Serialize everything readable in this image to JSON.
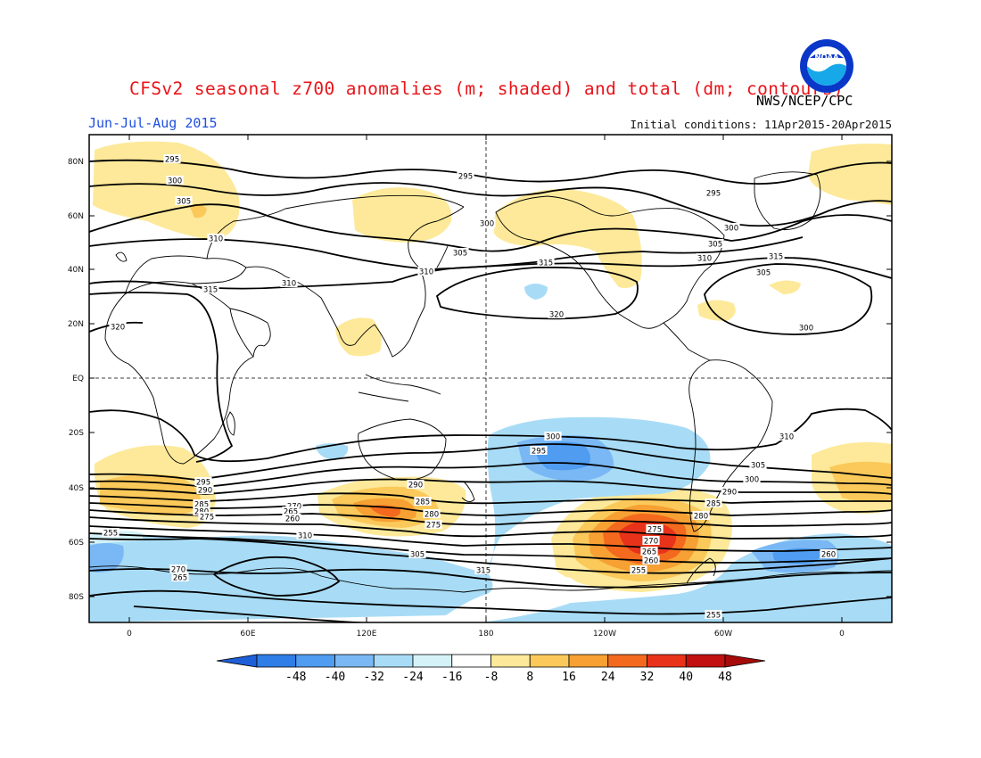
{
  "header": {
    "title": "CFSv2 seasonal z700 anomalies (m; shaded) and total (dm; contours)",
    "agency": "NWS/NCEP/CPC",
    "season": "Jun-Jul-Aug 2015",
    "initial_conditions": "Initial conditions: 11Apr2015-20Apr2015"
  },
  "logo": {
    "text": "NOAA",
    "icon": "noaa-logo"
  },
  "map": {
    "lat_ticks": [
      "80N",
      "60N",
      "40N",
      "20N",
      "EQ",
      "20S",
      "40S",
      "60S",
      "80S"
    ],
    "lon_ticks": [
      "0",
      "60E",
      "120E",
      "180",
      "120W",
      "60W",
      "0"
    ],
    "contour_labels": [
      "295",
      "300",
      "305",
      "310",
      "315",
      "320",
      "310",
      "295",
      "300",
      "305",
      "310",
      "315",
      "320",
      "300",
      "305",
      "310",
      "315",
      "305",
      "300",
      "295",
      "290",
      "285",
      "280",
      "275",
      "270",
      "265",
      "260",
      "255",
      "310",
      "305",
      "300",
      "295",
      "290",
      "285",
      "280",
      "275",
      "270",
      "265",
      "260",
      "255",
      "315",
      "310",
      "305",
      "300",
      "295",
      "290",
      "285",
      "280",
      "275",
      "270",
      "265",
      "260",
      "255"
    ]
  },
  "colorbar": {
    "labels": [
      "-48",
      "-40",
      "-32",
      "-24",
      "-16",
      "-8",
      "8",
      "16",
      "24",
      "32",
      "40",
      "48"
    ],
    "colors": [
      "#1e5fd8",
      "#2f7de6",
      "#4f9cf0",
      "#7ab8f5",
      "#a8dcf6",
      "#d4f2f8",
      "#ffffff",
      "#fde999",
      "#fbc95a",
      "#f7a033",
      "#f36a1f",
      "#e8331a",
      "#c0100f",
      "#a70a0a"
    ]
  }
}
